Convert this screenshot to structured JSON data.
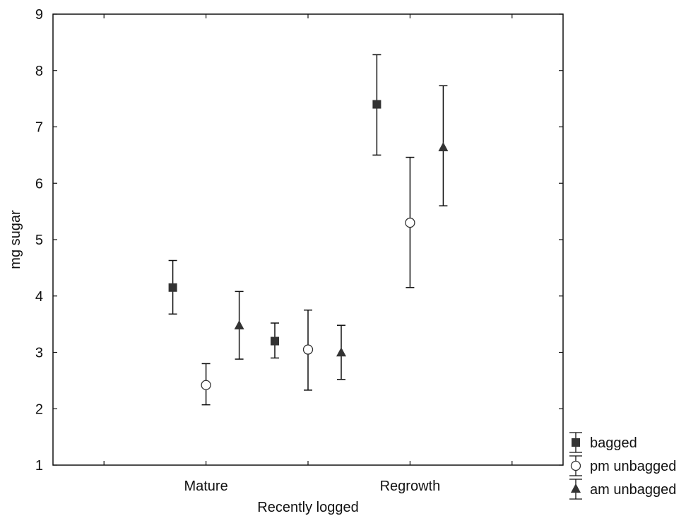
{
  "chart_data": {
    "type": "scatter",
    "title": "",
    "xlabel": "Recently logged",
    "ylabel": "mg sugar",
    "ylim": [
      1,
      9
    ],
    "yticks": [
      "1",
      "2",
      "3",
      "4",
      "5",
      "6",
      "7",
      "8",
      "9"
    ],
    "categories": [
      "Mature",
      "Recently logged",
      "Regrowth"
    ],
    "x_tick_labels": [
      "Mature",
      "Regrowth"
    ],
    "grid": false,
    "legend_position": "bottom-right, outside plot",
    "series": [
      {
        "name": "bagged",
        "marker": "filled-square",
        "values": [
          4.15,
          3.2,
          7.4
        ],
        "lower": [
          3.68,
          2.9,
          6.5
        ],
        "upper": [
          4.63,
          3.52,
          8.28
        ]
      },
      {
        "name": "pm unbagged",
        "marker": "open-circle",
        "values": [
          2.42,
          3.05,
          5.3
        ],
        "lower": [
          2.07,
          2.33,
          4.15
        ],
        "upper": [
          2.8,
          3.75,
          6.46
        ]
      },
      {
        "name": "am unbagged",
        "marker": "filled-triangle",
        "values": [
          3.47,
          2.99,
          6.63
        ],
        "lower": [
          2.88,
          2.52,
          5.6
        ],
        "upper": [
          4.08,
          3.48,
          7.73
        ]
      }
    ],
    "colors": {
      "marker": "#333333",
      "axis": "#111111"
    }
  }
}
